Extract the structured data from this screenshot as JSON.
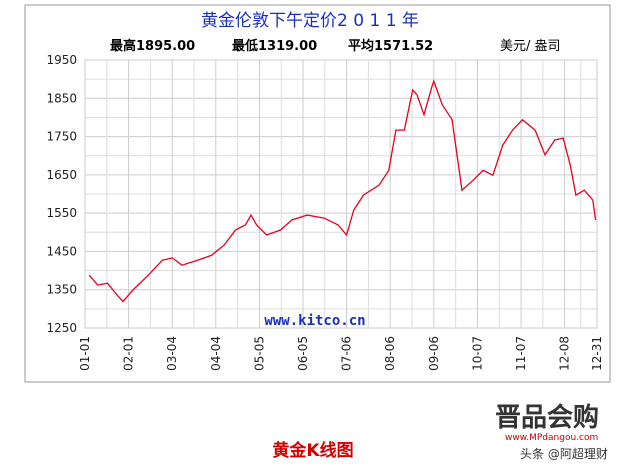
{
  "chart_data": {
    "type": "line",
    "title": "黄金伦敦下午定价2 0 1 1 年",
    "stats": [
      "最高1895.00",
      "最低1319.00",
      "平均1571.52"
    ],
    "unit": "美元/ 盎司",
    "watermark": "www.kitco.cn",
    "x": [
      "01-04",
      "01-10",
      "01-17",
      "01-21",
      "01-25",
      "01-28",
      "02-04",
      "02-15",
      "02-25",
      "03-04",
      "03-11",
      "03-22",
      "04-01",
      "04-10",
      "04-18",
      "04-25",
      "04-29",
      "05-03",
      "05-10",
      "05-20",
      "05-28",
      "06-08",
      "06-20",
      "06-30",
      "07-06",
      "07-11",
      "07-18",
      "07-29",
      "08-05",
      "08-10",
      "08-16",
      "08-22",
      "08-25",
      "08-30",
      "09-05",
      "09-06",
      "09-12",
      "09-19",
      "09-23",
      "09-26",
      "10-04",
      "10-11",
      "10-18",
      "10-25",
      "11-01",
      "11-08",
      "11-17",
      "11-24",
      "12-01",
      "12-07",
      "12-12",
      "12-16",
      "12-22",
      "12-28",
      "12-30"
    ],
    "series": [
      {
        "name": "黄金伦敦下午定价",
        "color": "#e8001c",
        "values": [
          1388,
          1362,
          1367,
          1349,
          1331,
          1319,
          1349,
          1388,
          1427,
          1433,
          1414,
          1427,
          1440,
          1467,
          1506,
          1519,
          1545,
          1519,
          1493,
          1506,
          1532,
          1545,
          1537,
          1519,
          1493,
          1558,
          1597,
          1623,
          1662,
          1767,
          1767,
          1872,
          1859,
          1807,
          1885,
          1895,
          1833,
          1794,
          1689,
          1610,
          1636,
          1662,
          1649,
          1728,
          1767,
          1794,
          1767,
          1702,
          1741,
          1746,
          1675,
          1597,
          1610,
          1584,
          1532
        ]
      }
    ],
    "xticks": [
      "01-01",
      "02-01",
      "03-04",
      "04-04",
      "05-05",
      "06-05",
      "07-06",
      "08-06",
      "09-06",
      "10-07",
      "11-07",
      "12-08",
      "12-31"
    ],
    "ylim": [
      1250,
      1950
    ],
    "yticks": [
      1250,
      1350,
      1450,
      1550,
      1650,
      1750,
      1850,
      1950
    ],
    "grid": true,
    "caption": "黄金K线图",
    "logo": "晋品会购",
    "logo_url": "www.MPdangou.com",
    "credit": "头条 @阿超理财"
  }
}
